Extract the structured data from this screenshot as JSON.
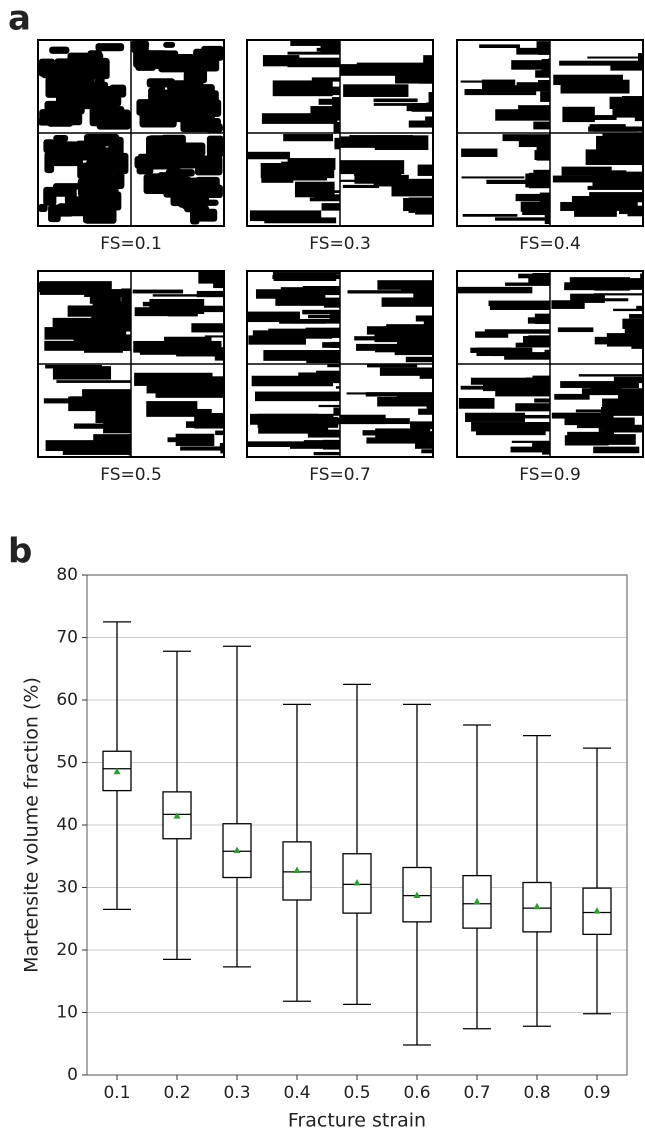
{
  "panel_labels": [
    "a",
    "b"
  ],
  "microstructures": [
    {
      "caption": "FS=0.1"
    },
    {
      "caption": "FS=0.3"
    },
    {
      "caption": "FS=0.4"
    },
    {
      "caption": "FS=0.5"
    },
    {
      "caption": "FS=0.7"
    },
    {
      "caption": "FS=0.9"
    }
  ],
  "chart_data": {
    "type": "box",
    "xlabel": "Fracture strain",
    "ylabel": "Martensite volume fraction (%)",
    "categories": [
      "0.1",
      "0.2",
      "0.3",
      "0.4",
      "0.5",
      "0.6",
      "0.7",
      "0.8",
      "0.9"
    ],
    "whislo": [
      26.5,
      18.5,
      17.3,
      11.8,
      11.3,
      4.8,
      7.4,
      7.8,
      9.8
    ],
    "q1": [
      45.5,
      37.8,
      31.6,
      28.0,
      25.9,
      24.5,
      23.5,
      22.9,
      22.5
    ],
    "med": [
      49.0,
      41.7,
      35.8,
      32.5,
      30.5,
      28.7,
      27.4,
      26.7,
      26.0
    ],
    "q3": [
      51.8,
      45.3,
      40.2,
      37.3,
      35.4,
      33.2,
      31.9,
      30.8,
      29.9
    ],
    "whishi": [
      72.5,
      67.8,
      68.6,
      59.3,
      62.5,
      59.3,
      56.0,
      54.3,
      52.3
    ],
    "mean": [
      48.6,
      41.5,
      36.0,
      32.8,
      30.8,
      28.8,
      27.8,
      27.0,
      26.3
    ],
    "mean_color": "#2ca02c",
    "ylim": [
      0,
      80
    ],
    "yticks": [
      0,
      10,
      20,
      30,
      40,
      50,
      60,
      70,
      80
    ],
    "grid": true
  }
}
